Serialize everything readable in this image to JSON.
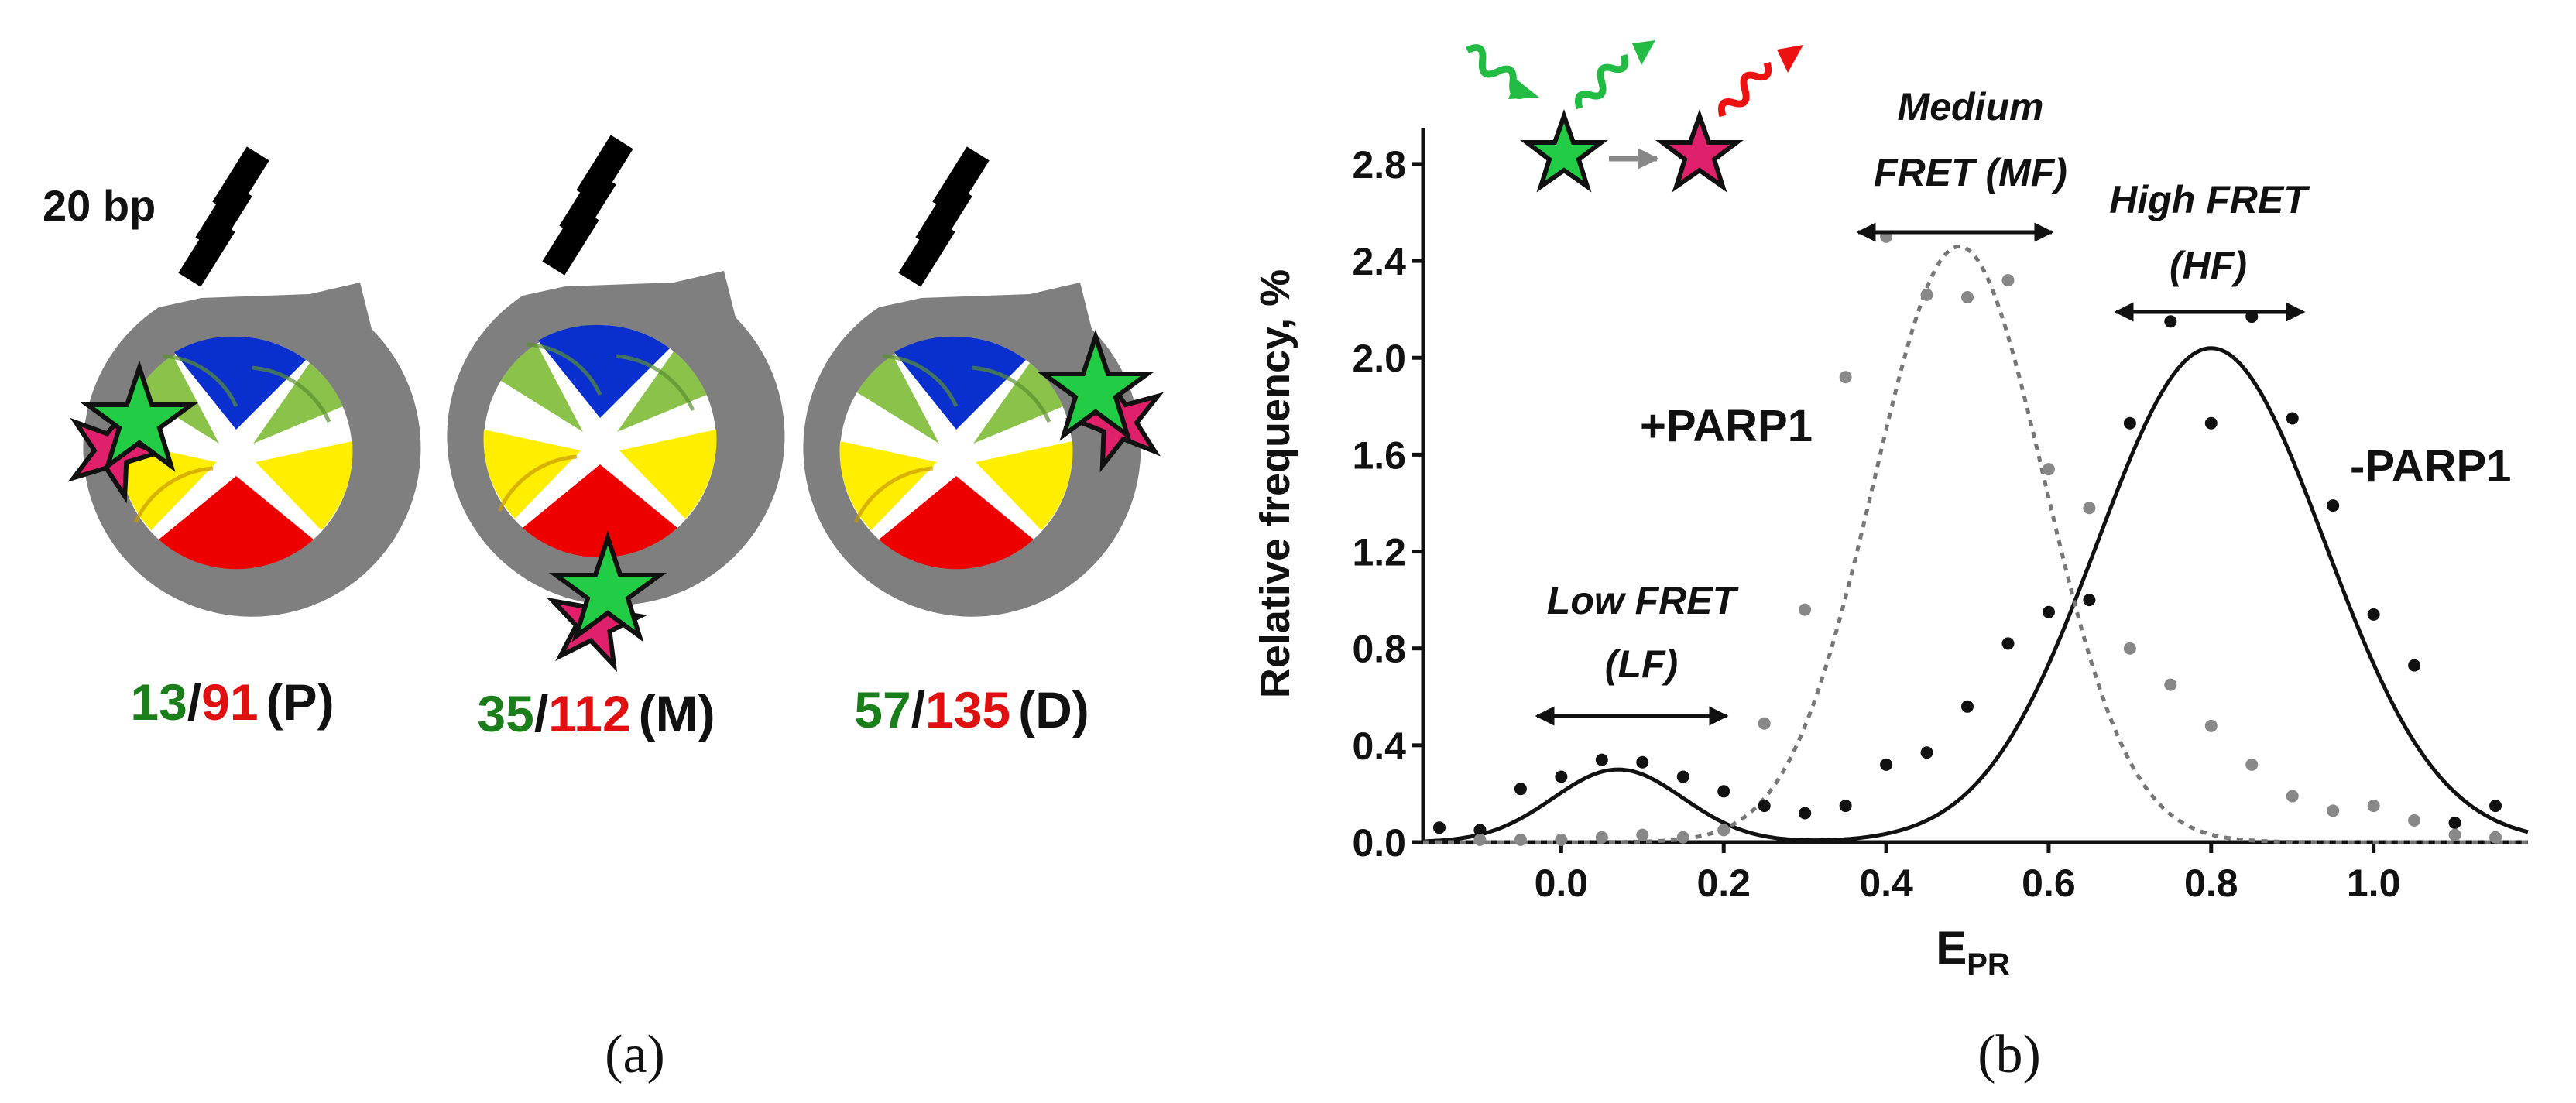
{
  "panel_a": {
    "scale_label": "20 bp",
    "nucleosomes": [
      {
        "donor": "13",
        "sep": "/",
        "acceptor": "91",
        "pos": "(P)"
      },
      {
        "donor": "35",
        "sep": "/",
        "acceptor": "112",
        "pos": "(M)"
      },
      {
        "donor": "57",
        "sep": "/",
        "acceptor": "135",
        "pos": "(D)"
      }
    ],
    "caption": "(a)"
  },
  "panel_b": {
    "caption": "(b)",
    "series_labels": {
      "plus": "+PARP1",
      "minus": "-PARP1"
    },
    "annotations": {
      "low": {
        "l1": "Low FRET",
        "l2": "(LF)"
      },
      "medium": {
        "l1": "Medium",
        "l2": "FRET (MF)"
      },
      "high": {
        "l1": "High FRET",
        "l2": "(HF)"
      }
    }
  },
  "chart_data": {
    "type": "scatter",
    "title": "",
    "xlabel": "E",
    "xlabel_sub": "PR",
    "ylabel": "Relative frequency, %",
    "xlim": [
      -0.17,
      1.19
    ],
    "ylim": [
      0,
      2.95
    ],
    "xticks": [
      0.0,
      0.2,
      0.4,
      0.6,
      0.8,
      1.0
    ],
    "xtick_labels": [
      "0.0",
      "0.2",
      "0.4",
      "0.6",
      "0.8",
      "1.0"
    ],
    "yticks": [
      0.0,
      0.4,
      0.8,
      1.2,
      1.6,
      2.0,
      2.4,
      2.8
    ],
    "ytick_labels": [
      "0.0",
      "0.4",
      "0.8",
      "1.2",
      "1.6",
      "2.0",
      "2.4",
      "2.8"
    ],
    "series": [
      {
        "name": "-PARP1",
        "color": "#111111",
        "fit": "solid",
        "points": [
          [
            -0.15,
            0.06
          ],
          [
            -0.1,
            0.05
          ],
          [
            -0.05,
            0.22
          ],
          [
            0.0,
            0.27
          ],
          [
            0.05,
            0.34
          ],
          [
            0.1,
            0.33
          ],
          [
            0.15,
            0.27
          ],
          [
            0.2,
            0.21
          ],
          [
            0.25,
            0.15
          ],
          [
            0.3,
            0.12
          ],
          [
            0.35,
            0.15
          ],
          [
            0.4,
            0.32
          ],
          [
            0.45,
            0.37
          ],
          [
            0.5,
            0.56
          ],
          [
            0.55,
            0.82
          ],
          [
            0.6,
            0.95
          ],
          [
            0.65,
            1.0
          ],
          [
            0.7,
            1.73
          ],
          [
            0.75,
            2.15
          ],
          [
            0.8,
            1.73
          ],
          [
            0.85,
            2.17
          ],
          [
            0.9,
            1.75
          ],
          [
            0.95,
            1.39
          ],
          [
            1.0,
            0.94
          ],
          [
            1.05,
            0.73
          ],
          [
            1.1,
            0.08
          ],
          [
            1.15,
            0.15
          ]
        ],
        "gaussians": [
          {
            "amp": 0.3,
            "mu": 0.07,
            "sigma": 0.08
          },
          {
            "amp": 2.04,
            "mu": 0.8,
            "sigma": 0.14
          }
        ]
      },
      {
        "name": "+PARP1",
        "color": "#888888",
        "fit": "dotted",
        "points": [
          [
            -0.1,
            0.01
          ],
          [
            -0.05,
            0.01
          ],
          [
            0.0,
            0.01
          ],
          [
            0.05,
            0.02
          ],
          [
            0.1,
            0.03
          ],
          [
            0.15,
            0.02
          ],
          [
            0.2,
            0.05
          ],
          [
            0.25,
            0.49
          ],
          [
            0.3,
            0.96
          ],
          [
            0.35,
            1.92
          ],
          [
            0.4,
            2.5
          ],
          [
            0.45,
            2.26
          ],
          [
            0.5,
            2.25
          ],
          [
            0.55,
            2.32
          ],
          [
            0.6,
            1.54
          ],
          [
            0.65,
            1.38
          ],
          [
            0.7,
            0.8
          ],
          [
            0.75,
            0.65
          ],
          [
            0.8,
            0.48
          ],
          [
            0.85,
            0.32
          ],
          [
            0.9,
            0.19
          ],
          [
            0.95,
            0.13
          ],
          [
            1.0,
            0.15
          ],
          [
            1.05,
            0.09
          ],
          [
            1.1,
            0.03
          ],
          [
            1.15,
            0.02
          ]
        ],
        "gaussians": [
          {
            "amp": 2.46,
            "mu": 0.49,
            "sigma": 0.105
          }
        ]
      }
    ]
  }
}
